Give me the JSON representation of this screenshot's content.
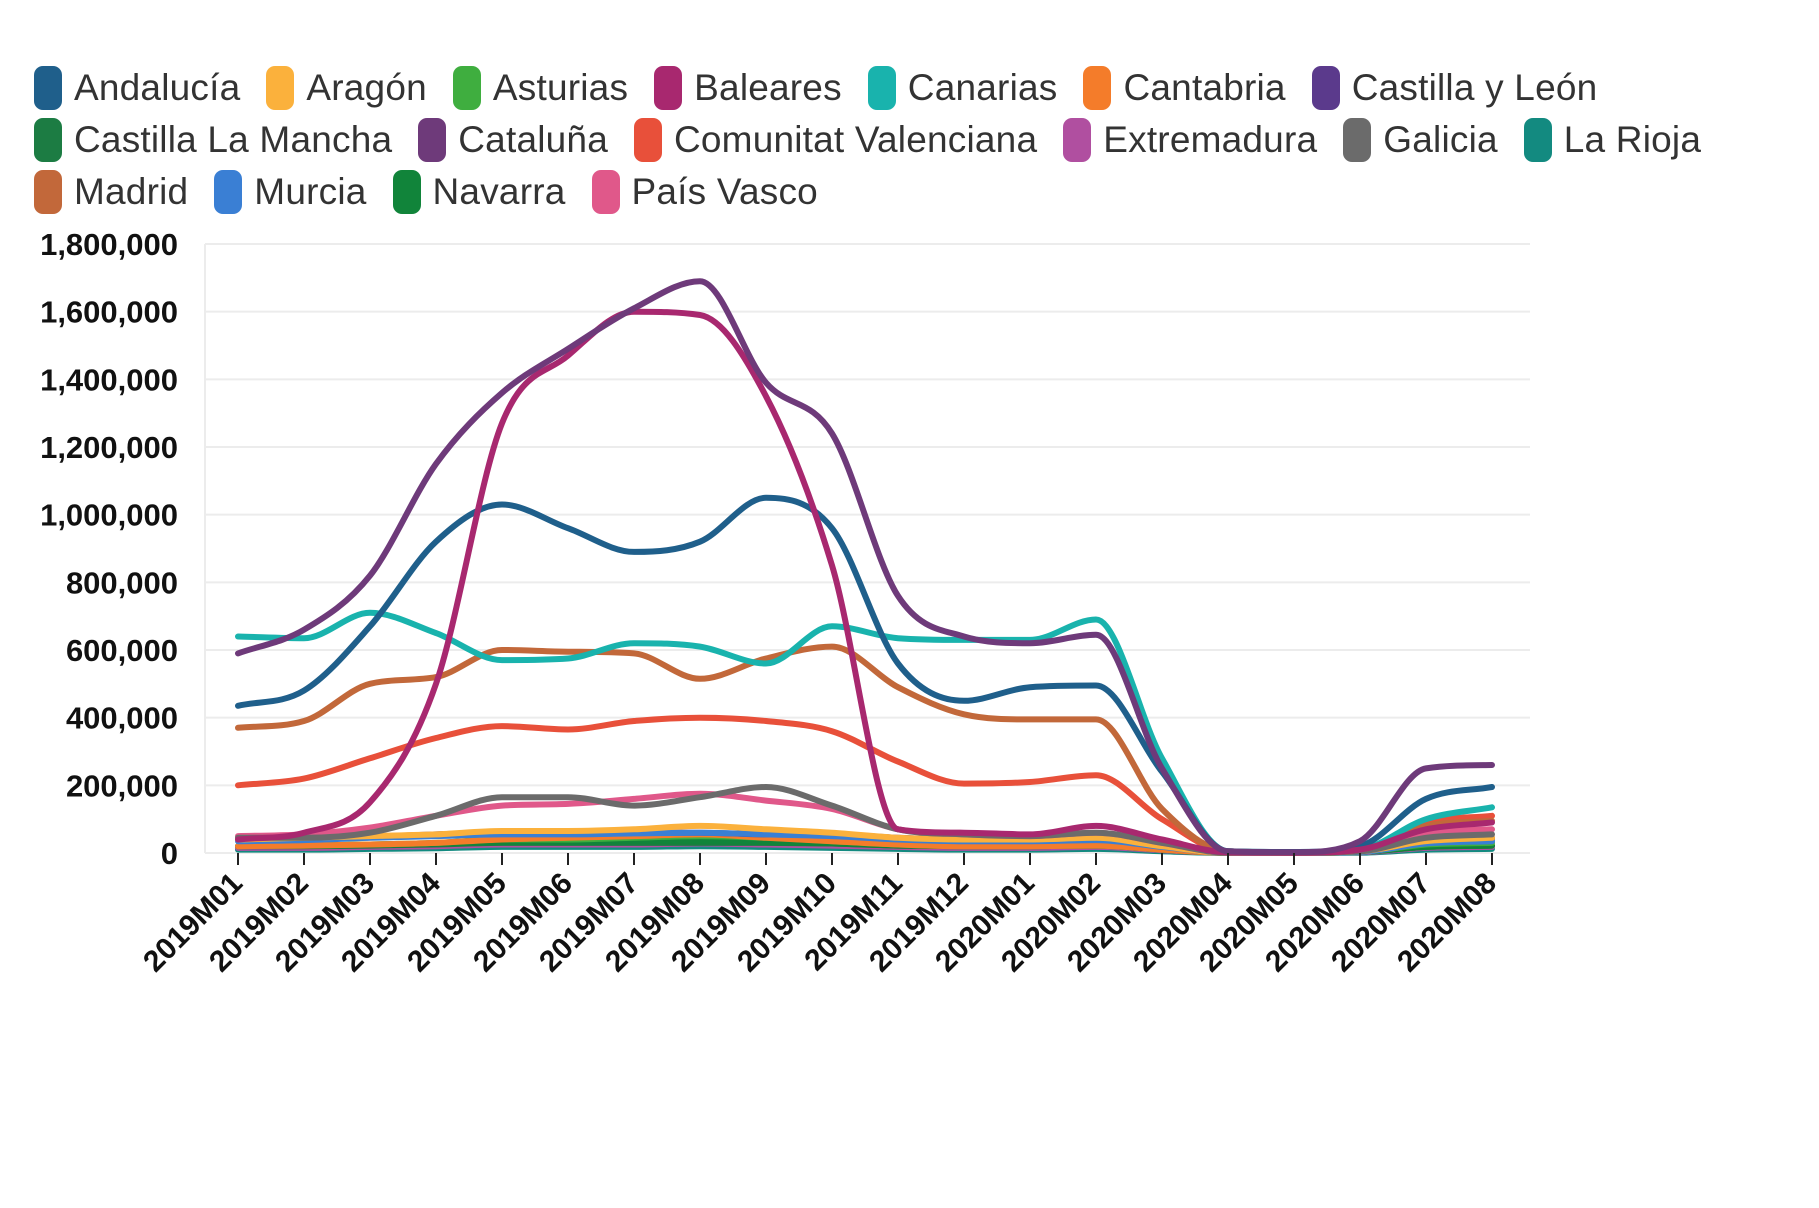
{
  "chart_data": {
    "type": "line",
    "title": "",
    "xlabel": "",
    "ylabel": "",
    "ylim": [
      0,
      1800000
    ],
    "yticks": [
      0,
      200000,
      400000,
      600000,
      800000,
      1000000,
      1200000,
      1400000,
      1600000,
      1800000
    ],
    "ytick_labels": [
      "0",
      "200,000",
      "400,000",
      "600,000",
      "800,000",
      "1,000,000",
      "1,200,000",
      "1,400,000",
      "1,600,000",
      "1,800,000"
    ],
    "grid": true,
    "legend_position": "top",
    "categories": [
      "2019M01",
      "2019M02",
      "2019M03",
      "2019M04",
      "2019M05",
      "2019M06",
      "2019M07",
      "2019M08",
      "2019M09",
      "2019M10",
      "2019M11",
      "2019M12",
      "2020M01",
      "2020M02",
      "2020M03",
      "2020M04",
      "2020M05",
      "2020M06",
      "2020M07",
      "2020M08"
    ],
    "series": [
      {
        "name": "Andalucía",
        "color": "#1f5f8b",
        "values": [
          435000,
          480000,
          670000,
          920000,
          1030000,
          960000,
          890000,
          920000,
          1050000,
          960000,
          560000,
          450000,
          490000,
          495000,
          240000,
          5000,
          3000,
          20000,
          160000,
          195000
        ]
      },
      {
        "name": "Aragón",
        "color": "#fbb13c",
        "values": [
          40000,
          45000,
          50000,
          55000,
          65000,
          65000,
          70000,
          80000,
          70000,
          60000,
          45000,
          40000,
          40000,
          45000,
          20000,
          1000,
          1000,
          5000,
          35000,
          45000
        ]
      },
      {
        "name": "Asturias",
        "color": "#3fae3f",
        "values": [
          20000,
          22000,
          25000,
          30000,
          40000,
          40000,
          45000,
          50000,
          45000,
          35000,
          25000,
          20000,
          20000,
          22000,
          10000,
          500,
          500,
          3000,
          25000,
          30000
        ]
      },
      {
        "name": "Baleares",
        "color": "#a8286f",
        "values": [
          40000,
          60000,
          150000,
          500000,
          1270000,
          1470000,
          1600000,
          1590000,
          1350000,
          850000,
          70000,
          60000,
          55000,
          80000,
          40000,
          2000,
          1000,
          10000,
          70000,
          90000
        ]
      },
      {
        "name": "Canarias",
        "color": "#19b3ad",
        "values": [
          640000,
          635000,
          710000,
          650000,
          570000,
          575000,
          620000,
          610000,
          560000,
          670000,
          635000,
          630000,
          630000,
          690000,
          280000,
          5000,
          2000,
          10000,
          100000,
          135000
        ]
      },
      {
        "name": "Cantabria",
        "color": "#f47c2a",
        "values": [
          20000,
          22000,
          25000,
          30000,
          40000,
          45000,
          50000,
          55000,
          45000,
          35000,
          25000,
          20000,
          20000,
          22000,
          10000,
          500,
          500,
          3000,
          30000,
          40000
        ]
      },
      {
        "name": "Castilla y León",
        "color": "#5b3a8c",
        "values": [
          40000,
          42000,
          48000,
          55000,
          60000,
          58000,
          60000,
          60000,
          55000,
          55000,
          45000,
          40000,
          40000,
          45000,
          20000,
          1000,
          1000,
          5000,
          35000,
          45000
        ]
      },
      {
        "name": "Castilla La Mancha",
        "color": "#1c7c43",
        "values": [
          20000,
          20000,
          22000,
          25000,
          30000,
          30000,
          30000,
          30000,
          30000,
          28000,
          22000,
          20000,
          20000,
          22000,
          10000,
          500,
          500,
          3000,
          18000,
          22000
        ]
      },
      {
        "name": "Cataluña",
        "color": "#6e3a7a",
        "values": [
          590000,
          660000,
          820000,
          1150000,
          1360000,
          1490000,
          1610000,
          1690000,
          1390000,
          1240000,
          760000,
          640000,
          620000,
          645000,
          250000,
          5000,
          2000,
          35000,
          250000,
          260000
        ]
      },
      {
        "name": "Comunitat Valenciana",
        "color": "#e8503a",
        "values": [
          200000,
          220000,
          280000,
          340000,
          375000,
          365000,
          390000,
          400000,
          390000,
          360000,
          270000,
          205000,
          210000,
          230000,
          100000,
          3000,
          1000,
          10000,
          90000,
          110000
        ]
      },
      {
        "name": "Extremadura",
        "color": "#b04fa0",
        "values": [
          15000,
          15000,
          18000,
          20000,
          25000,
          25000,
          25000,
          28000,
          25000,
          22000,
          18000,
          15000,
          15000,
          18000,
          8000,
          500,
          500,
          2000,
          15000,
          18000
        ]
      },
      {
        "name": "Galicia",
        "color": "#6b6b6b",
        "values": [
          45000,
          45000,
          60000,
          110000,
          165000,
          165000,
          140000,
          165000,
          195000,
          140000,
          70000,
          55000,
          50000,
          60000,
          30000,
          1000,
          1000,
          5000,
          45000,
          55000
        ]
      },
      {
        "name": "La Rioja",
        "color": "#138a80",
        "values": [
          10000,
          10000,
          12000,
          14000,
          18000,
          18000,
          18000,
          20000,
          18000,
          15000,
          12000,
          10000,
          10000,
          12000,
          5000,
          300,
          300,
          1000,
          10000,
          12000
        ]
      },
      {
        "name": "Madrid",
        "color": "#c2683a",
        "values": [
          370000,
          390000,
          500000,
          520000,
          600000,
          595000,
          590000,
          515000,
          575000,
          610000,
          490000,
          410000,
          395000,
          395000,
          130000,
          5000,
          2000,
          10000,
          80000,
          95000
        ]
      },
      {
        "name": "Murcia",
        "color": "#3a7fd4",
        "values": [
          35000,
          38000,
          45000,
          50000,
          55000,
          55000,
          58000,
          60000,
          55000,
          50000,
          40000,
          35000,
          35000,
          38000,
          18000,
          500,
          500,
          3000,
          28000,
          35000
        ]
      },
      {
        "name": "Navarra",
        "color": "#11843a",
        "values": [
          20000,
          22000,
          25000,
          28000,
          32000,
          32000,
          35000,
          35000,
          32000,
          28000,
          22000,
          20000,
          20000,
          22000,
          10000,
          500,
          500,
          3000,
          18000,
          22000
        ]
      },
      {
        "name": "País Vasco",
        "color": "#e0588a",
        "values": [
          50000,
          55000,
          75000,
          110000,
          140000,
          145000,
          160000,
          175000,
          155000,
          130000,
          70000,
          55000,
          50000,
          60000,
          30000,
          1000,
          1000,
          8000,
          60000,
          70000
        ]
      }
    ]
  },
  "legend_rows": [
    [
      0,
      1,
      2,
      3,
      4,
      5,
      6
    ],
    [
      7,
      8,
      9,
      10,
      11,
      12
    ],
    [
      13,
      14,
      15,
      16
    ]
  ]
}
